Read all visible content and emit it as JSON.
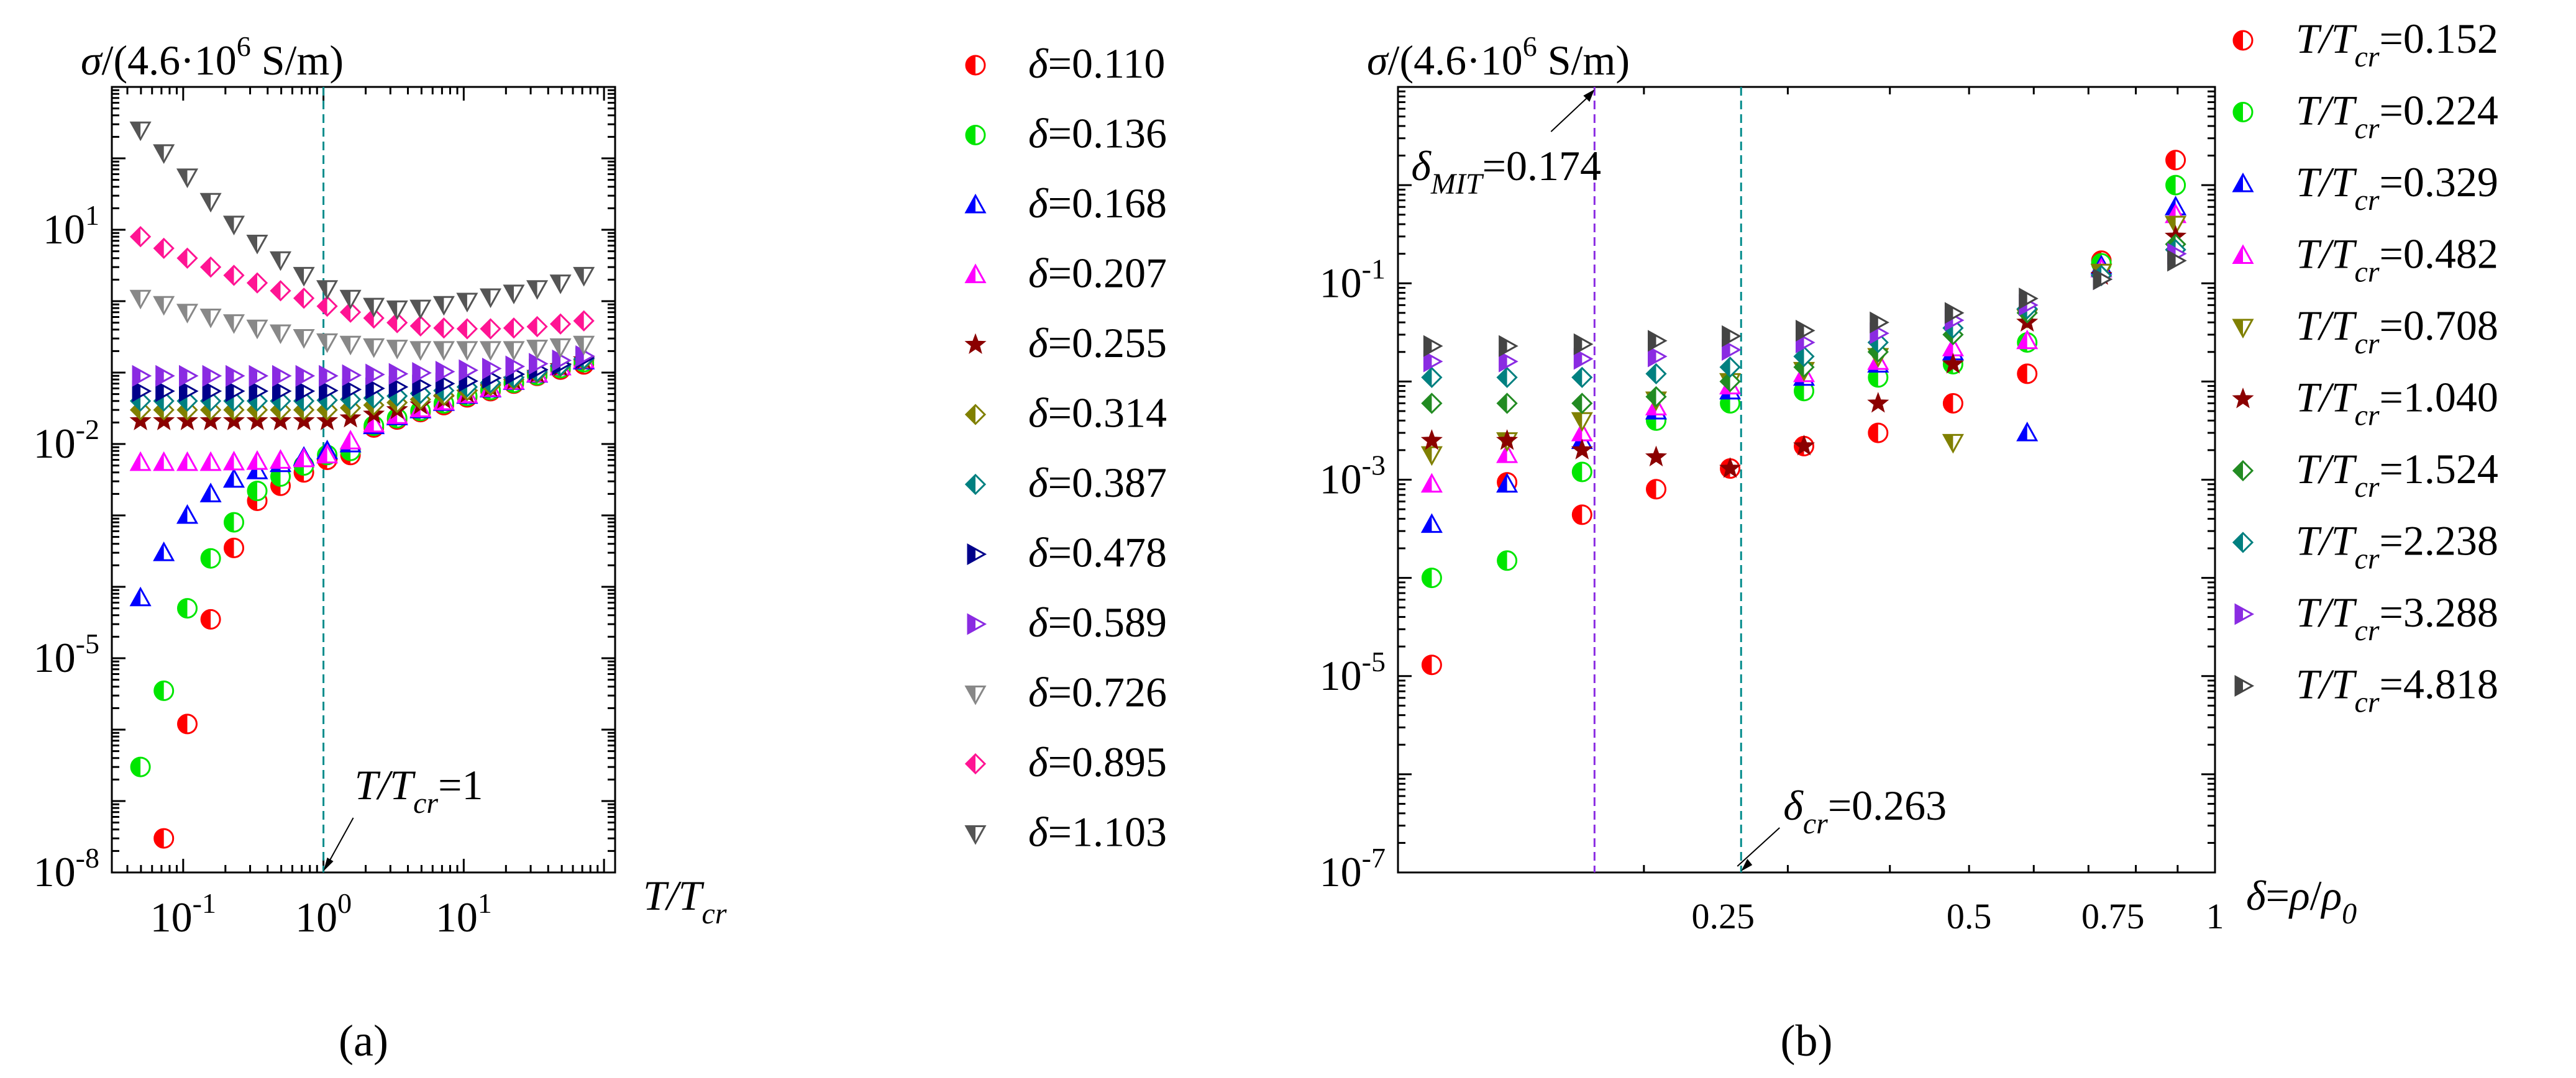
{
  "chart_data": [
    {
      "panel": "a",
      "type": "scatter",
      "caption": "(a)",
      "ylabel": "σ/(4.6·10⁶ S/m)",
      "xlabel": "T/Tcr",
      "xscale": "log",
      "yscale": "log",
      "xlim": [
        0.031,
        120
      ],
      "ylim": [
        1e-08,
        1000
      ],
      "xticks": [
        {
          "v": 0.1,
          "label": "10⁻¹"
        },
        {
          "v": 1,
          "label": "10⁰"
        },
        {
          "v": 10,
          "label": "10¹"
        }
      ],
      "yticks": [
        {
          "v": 1e-08,
          "label": "10⁻⁸"
        },
        {
          "v": 1e-05,
          "label": "10⁻⁵"
        },
        {
          "v": 0.01,
          "label": "10⁻²"
        },
        {
          "v": 10,
          "label": "10¹"
        }
      ],
      "vline": {
        "x": 1,
        "label": "T/Tcr=1"
      },
      "x": [
        0.0496,
        0.0728,
        0.107,
        0.157,
        0.23,
        0.337,
        0.494,
        0.725,
        1.063,
        1.559,
        2.287,
        3.354,
        4.92,
        7.216,
        10.58,
        15.52,
        22.77,
        33.39,
        48.98,
        71.84
      ],
      "series": [
        {
          "name": "δ=0.110",
          "color": "#ff0000",
          "marker": "circle-half",
          "values": [
            null,
            3e-08,
            1.2e-06,
            3.5e-05,
            0.00035,
            0.0016,
            0.0026,
            0.004,
            0.006,
            0.007,
            0.017,
            0.022,
            0.028,
            0.035,
            0.045,
            0.055,
            0.07,
            0.09,
            0.11,
            0.13
          ]
        },
        {
          "name": "δ=0.136",
          "color": "#00e600",
          "marker": "circle-half",
          "values": [
            3e-07,
            3.5e-06,
            5e-05,
            0.00025,
            0.0008,
            0.0022,
            0.0035,
            0.005,
            0.007,
            0.008,
            0.018,
            0.023,
            0.029,
            0.037,
            0.047,
            0.057,
            0.072,
            0.092,
            0.115,
            0.14
          ]
        },
        {
          "name": "δ=0.168",
          "color": "#0000ff",
          "marker": "triangle-up-half",
          "values": [
            7e-05,
            0.0003,
            0.001,
            0.002,
            0.0032,
            0.0042,
            0.0053,
            0.0065,
            0.008,
            0.01,
            0.018,
            0.024,
            0.03,
            0.038,
            0.048,
            0.059,
            0.075,
            0.095,
            0.12,
            0.145
          ]
        },
        {
          "name": "δ=0.207",
          "color": "#ff00ff",
          "marker": "triangle-up-half",
          "values": [
            0.0055,
            0.0055,
            0.0055,
            0.0055,
            0.0056,
            0.0057,
            0.0059,
            0.0062,
            0.007,
            0.011,
            0.019,
            0.025,
            0.031,
            0.039,
            0.049,
            0.06,
            0.076,
            0.096,
            0.12,
            0.15
          ]
        },
        {
          "name": "δ=0.255",
          "color": "#8b0000",
          "marker": "star",
          "values": [
            0.021,
            0.021,
            0.021,
            0.021,
            0.021,
            0.021,
            0.021,
            0.021,
            0.021,
            0.023,
            0.026,
            0.03,
            0.035,
            0.042,
            0.051,
            0.062,
            0.078,
            0.097,
            0.12,
            0.15
          ]
        },
        {
          "name": "δ=0.314",
          "color": "#808000",
          "marker": "diamond-half",
          "values": [
            0.03,
            0.03,
            0.03,
            0.03,
            0.03,
            0.03,
            0.03,
            0.03,
            0.03,
            0.032,
            0.035,
            0.038,
            0.042,
            0.048,
            0.056,
            0.066,
            0.08,
            0.099,
            0.122,
            0.15
          ]
        },
        {
          "name": "δ=0.387",
          "color": "#008080",
          "marker": "diamond-half",
          "values": [
            0.04,
            0.04,
            0.04,
            0.04,
            0.04,
            0.04,
            0.04,
            0.04,
            0.041,
            0.042,
            0.044,
            0.047,
            0.051,
            0.056,
            0.063,
            0.072,
            0.085,
            0.103,
            0.125,
            0.155
          ]
        },
        {
          "name": "δ=0.478",
          "color": "#00008b",
          "marker": "triangle-right-half",
          "values": [
            0.055,
            0.055,
            0.055,
            0.055,
            0.055,
            0.055,
            0.055,
            0.055,
            0.056,
            0.058,
            0.06,
            0.063,
            0.066,
            0.07,
            0.076,
            0.084,
            0.095,
            0.11,
            0.13,
            0.16
          ]
        },
        {
          "name": "δ=0.589",
          "color": "#8a2be2",
          "marker": "triangle-right-half",
          "values": [
            0.09,
            0.09,
            0.09,
            0.09,
            0.09,
            0.09,
            0.09,
            0.09,
            0.09,
            0.092,
            0.094,
            0.096,
            0.099,
            0.103,
            0.108,
            0.114,
            0.122,
            0.133,
            0.148,
            0.17
          ]
        },
        {
          "name": "δ=0.726",
          "color": "#888888",
          "marker": "triangle-down-half",
          "values": [
            1.1,
            0.9,
            0.7,
            0.6,
            0.5,
            0.42,
            0.36,
            0.31,
            0.27,
            0.25,
            0.23,
            0.22,
            0.21,
            0.21,
            0.21,
            0.21,
            0.21,
            0.22,
            0.23,
            0.25
          ]
        },
        {
          "name": "δ=0.895",
          "color": "#ff1493",
          "marker": "diamond-half",
          "values": [
            8,
            5.5,
            4,
            3,
            2.3,
            1.8,
            1.4,
            1.1,
            0.85,
            0.7,
            0.58,
            0.5,
            0.45,
            0.42,
            0.41,
            0.41,
            0.42,
            0.44,
            0.48,
            0.53
          ]
        },
        {
          "name": "δ=1.103",
          "color": "#555555",
          "marker": "triangle-down-half",
          "values": [
            250,
            120,
            55,
            25,
            12,
            6.5,
            3.8,
            2.3,
            1.5,
            1.1,
            0.85,
            0.78,
            0.8,
            0.9,
            1.0,
            1.15,
            1.3,
            1.5,
            1.8,
            2.3
          ]
        }
      ]
    },
    {
      "panel": "b",
      "type": "scatter",
      "caption": "(b)",
      "ylabel": "σ/(4.6·10⁶ S/m)",
      "xlabel": "δ=ρ/ρ0",
      "xscale": "log",
      "yscale": "log",
      "xlim": [
        0.1,
        1.0
      ],
      "ylim": [
        1e-07,
        10
      ],
      "xticks": [
        {
          "v": 0.25,
          "label": "0.25"
        },
        {
          "v": 0.5,
          "label": "0.5"
        },
        {
          "v": 0.75,
          "label": "0.75"
        },
        {
          "v": 1,
          "label": "1"
        }
      ],
      "yticks": [
        {
          "v": 1e-07,
          "label": "10⁻⁷"
        },
        {
          "v": 1e-05,
          "label": "10⁻⁵"
        },
        {
          "v": 0.001,
          "label": "10⁻³"
        },
        {
          "v": 0.1,
          "label": "10⁻¹"
        }
      ],
      "vlines": [
        {
          "x": 0.174,
          "label": "δMIT=0.174",
          "color": "#8a2be2"
        },
        {
          "x": 0.263,
          "label": "δcr=0.263",
          "color": "#008b8b"
        }
      ],
      "x": [
        0.11,
        0.136,
        0.168,
        0.207,
        0.255,
        0.314,
        0.387,
        0.478,
        0.589,
        0.726,
        0.895
      ],
      "series": [
        {
          "name": "T/Tcr=0.152",
          "color": "#ff0000",
          "marker": "circle-half",
          "values": [
            1.3e-05,
            0.00094,
            0.00044,
            0.0008,
            0.0013,
            0.0022,
            0.003,
            0.006,
            0.012,
            0.17,
            1.8
          ]
        },
        {
          "name": "T/Tcr=0.224",
          "color": "#00e600",
          "marker": "circle-half",
          "values": [
            0.0001,
            0.00015,
            0.0012,
            0.004,
            0.006,
            0.008,
            0.011,
            0.015,
            0.025,
            0.16,
            1.0
          ]
        },
        {
          "name": "T/Tcr=0.329",
          "color": "#0000ff",
          "marker": "triangle-up-half",
          "values": [
            0.00035,
            0.0009,
            0.0025,
            0.005,
            0.008,
            0.011,
            0.015,
            0.02,
            0.003,
            0.15,
            0.6
          ]
        },
        {
          "name": "T/Tcr=0.482",
          "color": "#ff00ff",
          "marker": "triangle-up-half",
          "values": [
            0.0009,
            0.0018,
            0.003,
            0.0055,
            0.009,
            0.012,
            0.016,
            0.022,
            0.026,
            0.14,
            0.5
          ]
        },
        {
          "name": "T/Tcr=0.708",
          "color": "#808000",
          "marker": "triangle-down-half",
          "values": [
            0.0018,
            0.0025,
            0.004,
            0.0065,
            0.01,
            0.013,
            0.018,
            0.0024,
            0.045,
            0.13,
            0.4
          ]
        },
        {
          "name": "T/Tcr=1.040",
          "color": "#8b0000",
          "marker": "star",
          "values": [
            0.0025,
            0.0025,
            0.002,
            0.0017,
            0.0013,
            0.0022,
            0.006,
            0.015,
            0.04,
            0.12,
            0.3
          ]
        },
        {
          "name": "T/Tcr=1.524",
          "color": "#228b22",
          "marker": "diamond-half",
          "values": [
            0.006,
            0.006,
            0.006,
            0.007,
            0.01,
            0.014,
            0.02,
            0.03,
            0.05,
            0.12,
            0.25
          ]
        },
        {
          "name": "T/Tcr=2.238",
          "color": "#008080",
          "marker": "diamond-half",
          "values": [
            0.011,
            0.011,
            0.011,
            0.012,
            0.014,
            0.018,
            0.025,
            0.035,
            0.055,
            0.12,
            0.22
          ]
        },
        {
          "name": "T/Tcr=3.288",
          "color": "#8a2be2",
          "marker": "triangle-right-half",
          "values": [
            0.016,
            0.016,
            0.017,
            0.018,
            0.021,
            0.025,
            0.031,
            0.042,
            0.06,
            0.11,
            0.2
          ]
        },
        {
          "name": "T/Tcr=4.818",
          "color": "#444444",
          "marker": "triangle-right-half",
          "values": [
            0.023,
            0.023,
            0.024,
            0.026,
            0.029,
            0.033,
            0.04,
            0.05,
            0.07,
            0.11,
            0.17
          ]
        }
      ]
    }
  ]
}
